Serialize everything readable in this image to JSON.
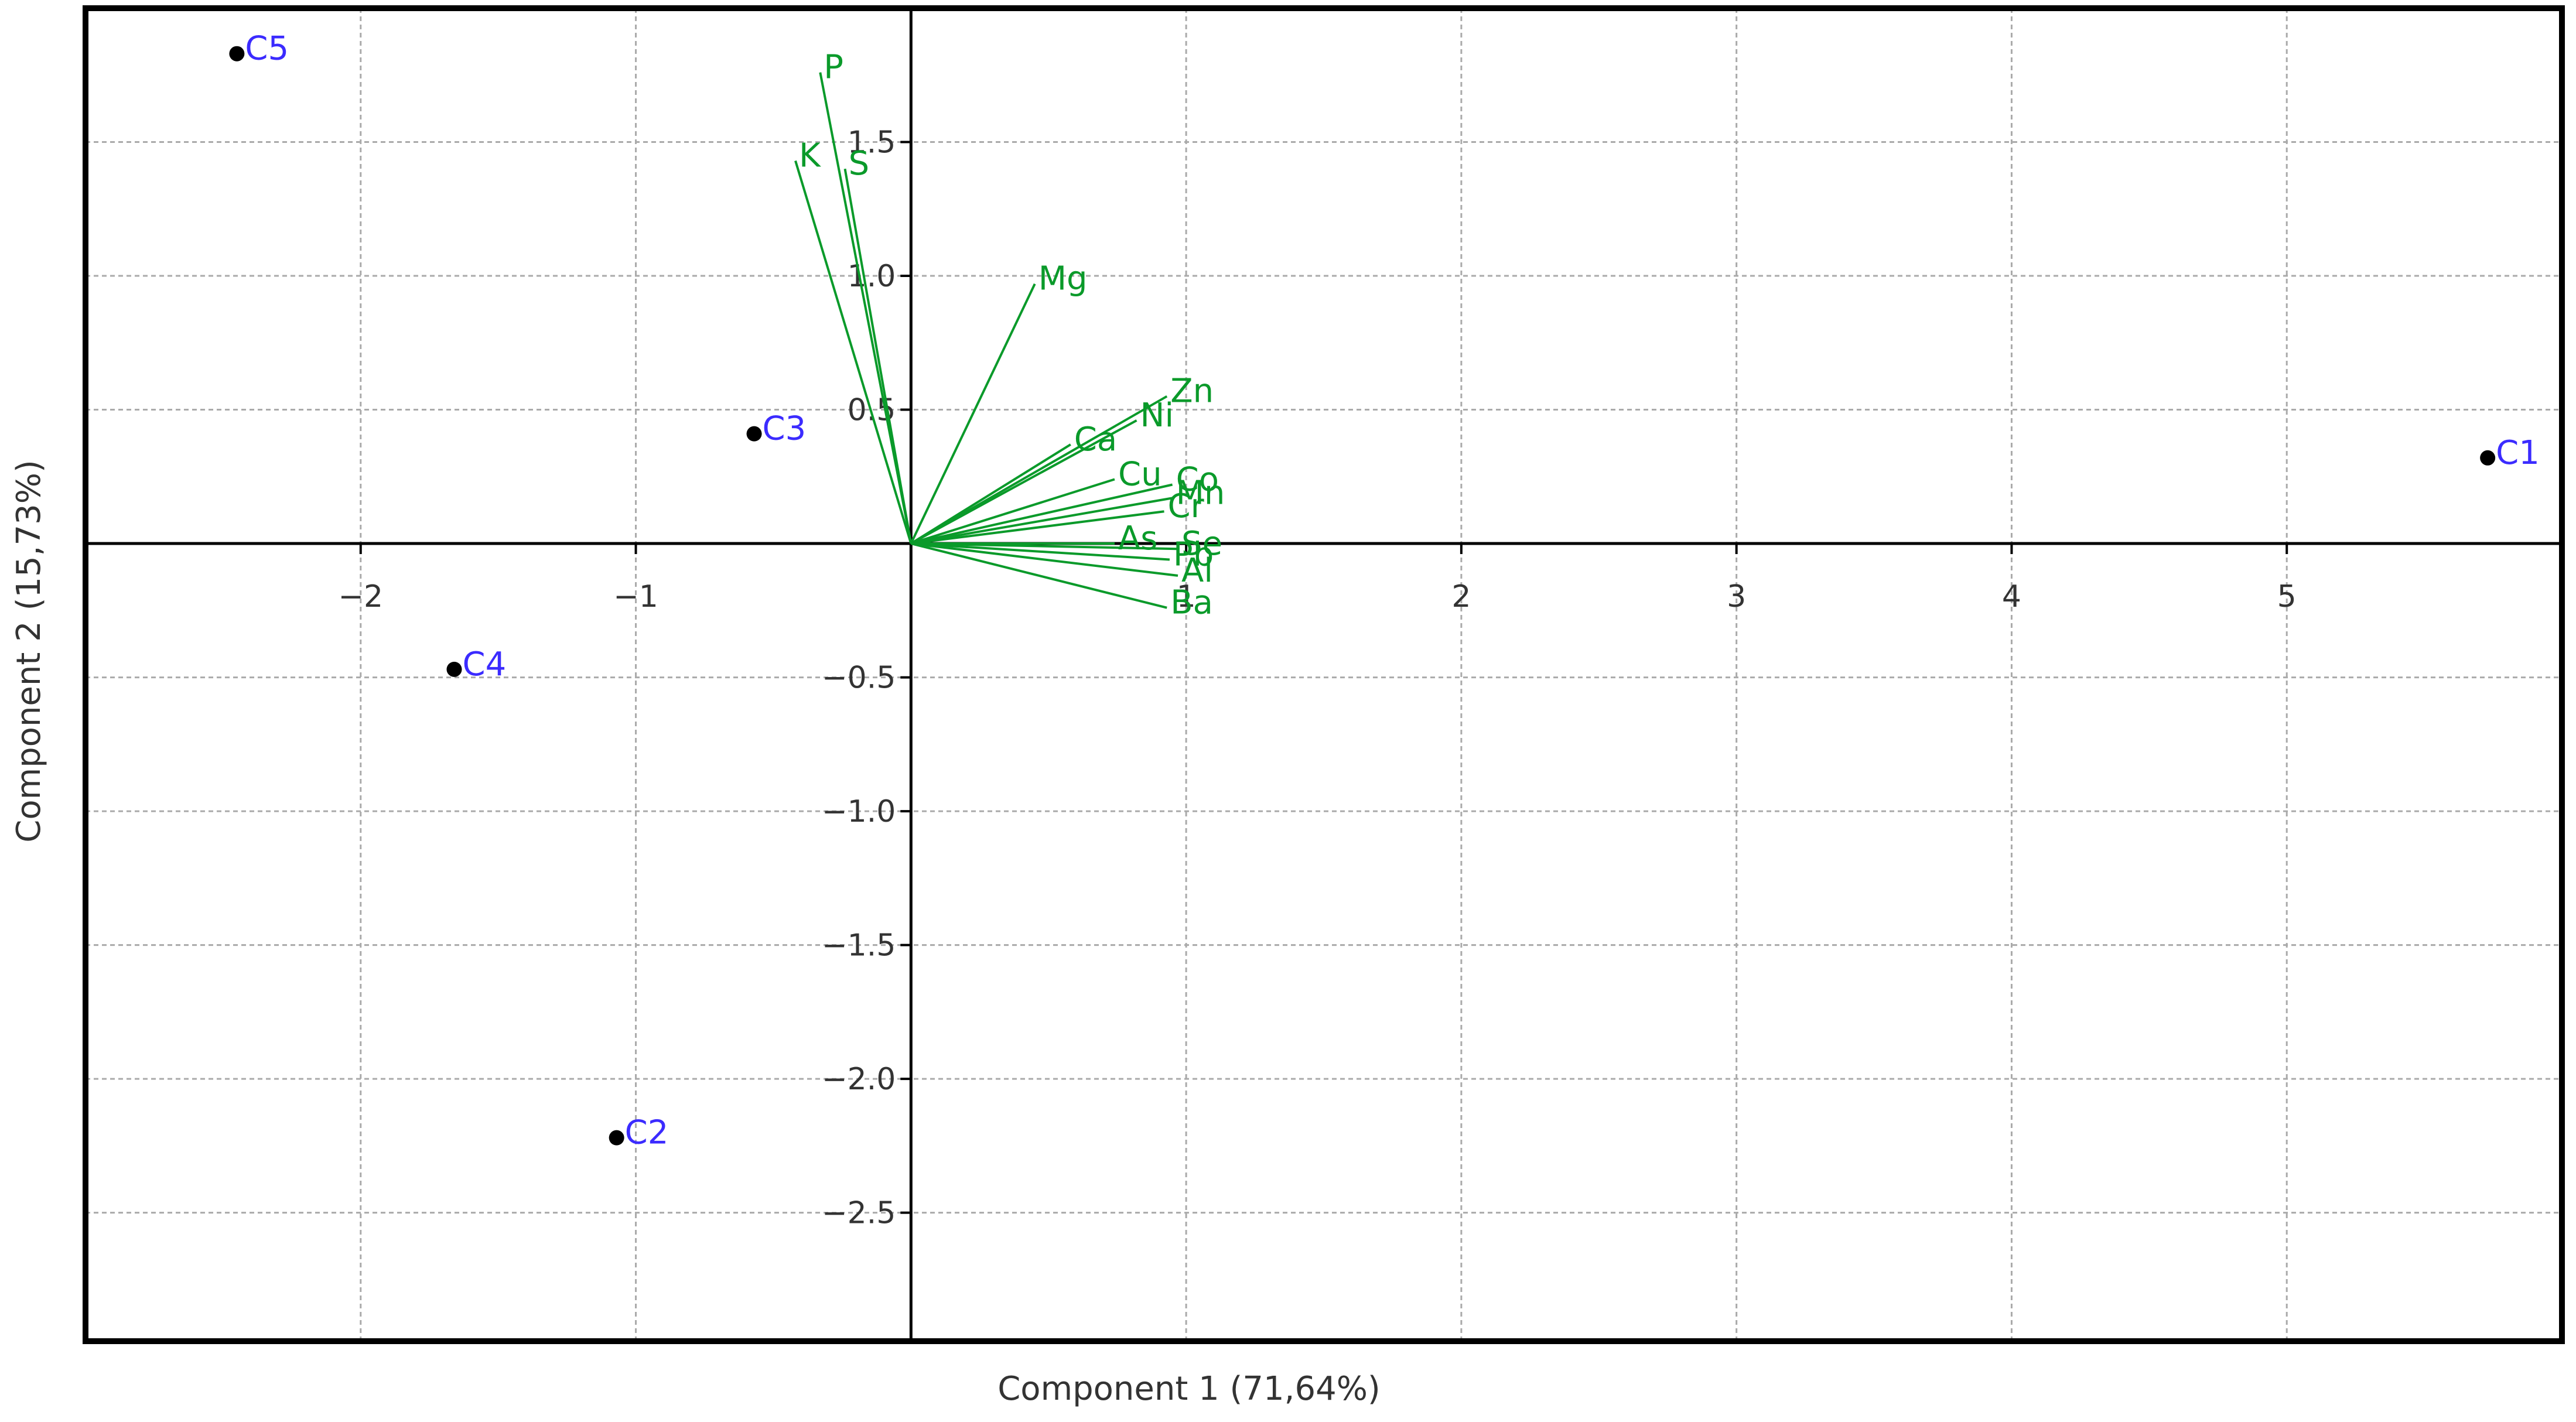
{
  "chart_data": {
    "type": "scatter",
    "subtype": "pca-biplot",
    "title": "",
    "xlabel": "Component 1 (71,64%)",
    "ylabel": "Component 2 (15,73%)",
    "xlim": [
      -3.0,
      6.0
    ],
    "ylim": [
      -2.98,
      2.0
    ],
    "x_ticks": [
      {
        "value": -2,
        "label": "−2"
      },
      {
        "value": -1,
        "label": "−1"
      },
      {
        "value": 1,
        "label": "1"
      },
      {
        "value": 2,
        "label": "2"
      },
      {
        "value": 3,
        "label": "3"
      },
      {
        "value": 4,
        "label": "4"
      },
      {
        "value": 5,
        "label": "5"
      }
    ],
    "y_ticks": [
      {
        "value": 1.5,
        "label": "1.5"
      },
      {
        "value": 1.0,
        "label": "1.0"
      },
      {
        "value": 0.5,
        "label": "0.5"
      },
      {
        "value": -0.5,
        "label": "−0.5"
      },
      {
        "value": -1.0,
        "label": "−1.0"
      },
      {
        "value": -1.5,
        "label": "−1.5"
      },
      {
        "value": -2.0,
        "label": "−2.0"
      },
      {
        "value": -2.5,
        "label": "−2.5"
      }
    ],
    "grid": true,
    "observations": [
      {
        "label": "C1",
        "x": 5.73,
        "y": 0.32
      },
      {
        "label": "C2",
        "x": -1.07,
        "y": -2.22
      },
      {
        "label": "C3",
        "x": -0.57,
        "y": 0.41
      },
      {
        "label": "C4",
        "x": -1.66,
        "y": -0.47
      },
      {
        "label": "C5",
        "x": -2.45,
        "y": 1.83
      }
    ],
    "variables": [
      {
        "label": "P",
        "x": -0.33,
        "y": 1.76
      },
      {
        "label": "K",
        "x": -0.42,
        "y": 1.43
      },
      {
        "label": "S",
        "x": -0.24,
        "y": 1.4
      },
      {
        "label": "Mg",
        "x": 0.45,
        "y": 0.97
      },
      {
        "label": "Zn",
        "x": 0.93,
        "y": 0.55
      },
      {
        "label": "Ni",
        "x": 0.82,
        "y": 0.46
      },
      {
        "label": "Ca",
        "x": 0.58,
        "y": 0.37
      },
      {
        "label": "Cu",
        "x": 0.74,
        "y": 0.24
      },
      {
        "label": "Co",
        "x": 0.95,
        "y": 0.22
      },
      {
        "label": "Mn",
        "x": 0.95,
        "y": 0.17
      },
      {
        "label": "Cr",
        "x": 0.92,
        "y": 0.12
      },
      {
        "label": "As",
        "x": 0.74,
        "y": 0.0
      },
      {
        "label": "Se",
        "x": 0.97,
        "y": -0.02
      },
      {
        "label": "Pb",
        "x": 0.94,
        "y": -0.06
      },
      {
        "label": "Al",
        "x": 0.97,
        "y": -0.12
      },
      {
        "label": "Ba",
        "x": 0.93,
        "y": -0.24
      }
    ],
    "colors": {
      "observation_point": "#000000",
      "observation_label": "#3b2bff",
      "variable": "#0a9a2a",
      "axes": "#000000",
      "grid": "#aaaaaa",
      "frame": "#000000"
    }
  }
}
